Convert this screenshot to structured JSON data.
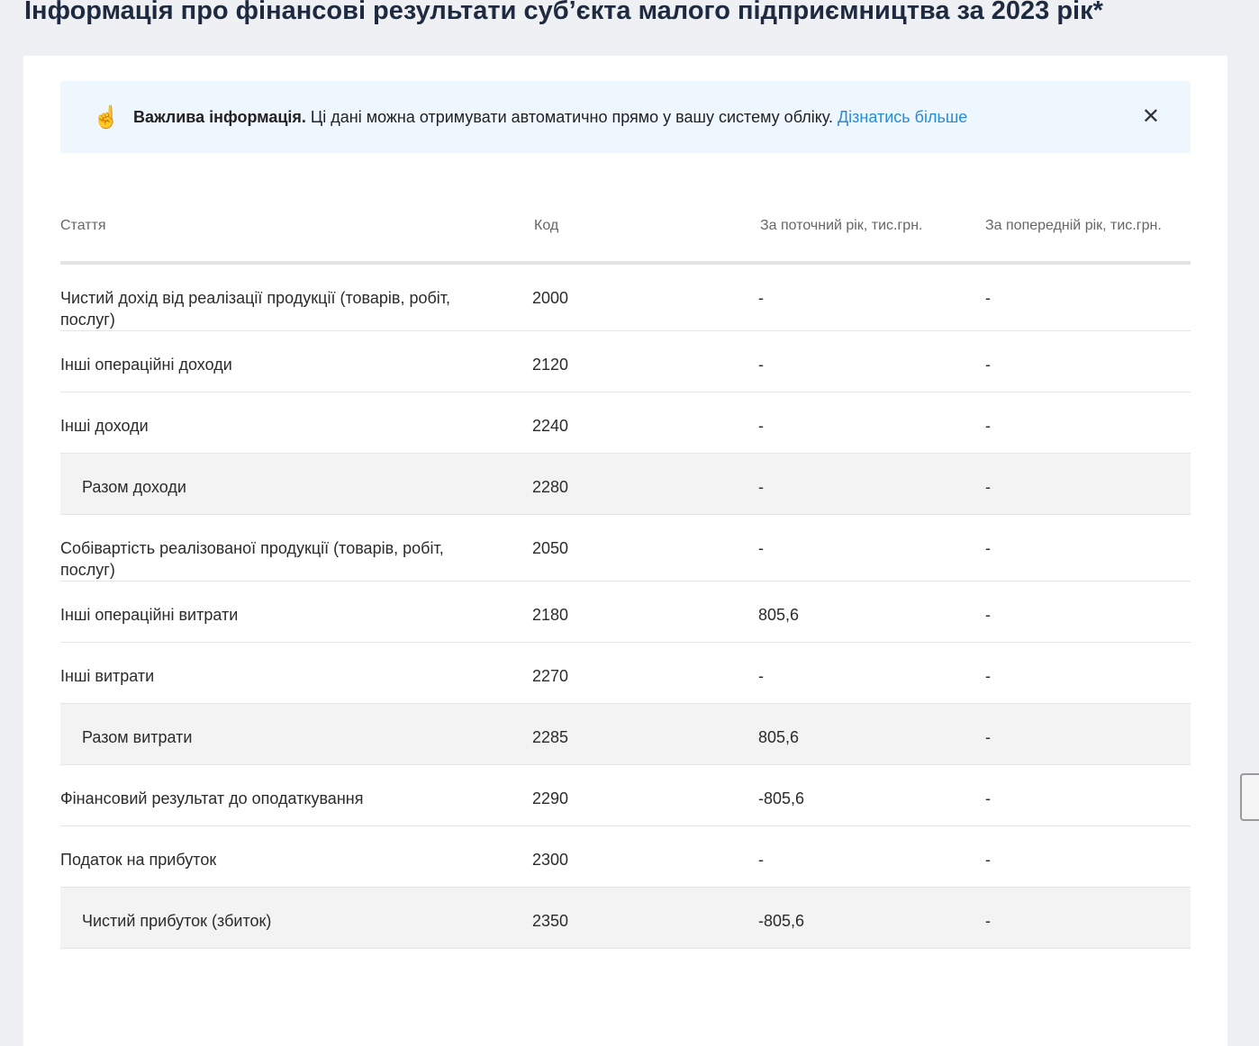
{
  "title": "Інформація про фінансові результати суб’єкта малого підприємництва за 2023 рік*",
  "alert": {
    "icon": "pointing-hand-icon",
    "bold": "Важлива інформація.",
    "text": " Ці дані можна отримувати автоматично прямо у вашу систему обліку. ",
    "link": "Дізнатись більше",
    "close": "✕"
  },
  "table": {
    "headers": [
      "Стаття",
      "Код",
      "За поточний рік, тис.грн.",
      "За попередній рік, тис.грн."
    ],
    "rows": [
      {
        "name": "Чистий дохід від реалізації продукції (товарів, робіт, послуг)",
        "code": "2000",
        "current": "-",
        "previous": "-"
      },
      {
        "name": "Інші операційні доходи",
        "code": "2120",
        "current": "-",
        "previous": "-"
      },
      {
        "name": "Інші доходи",
        "code": "2240",
        "current": "-",
        "previous": "-"
      },
      {
        "name": "Разом доходи",
        "code": "2280",
        "current": "-",
        "previous": "-",
        "total": true
      },
      {
        "name": "Собівартість реалізованої продукції (товарів, робіт, послуг)",
        "code": "2050",
        "current": "-",
        "previous": "-"
      },
      {
        "name": "Інші операційні витрати",
        "code": "2180",
        "current": "805,6",
        "previous": "-"
      },
      {
        "name": "Інші витрати",
        "code": "2270",
        "current": "-",
        "previous": "-"
      },
      {
        "name": "Разом витрати",
        "code": "2285",
        "current": "805,6",
        "previous": "-",
        "total": true
      },
      {
        "name": "Фінансовий результат до оподаткування",
        "code": "2290",
        "current": "-805,6",
        "previous": "-"
      },
      {
        "name": "Податок на прибуток",
        "code": "2300",
        "current": "-",
        "previous": "-"
      },
      {
        "name": "Чистий прибуток (збиток)",
        "code": "2350",
        "current": "-805,6",
        "previous": "-",
        "total": true
      }
    ]
  }
}
